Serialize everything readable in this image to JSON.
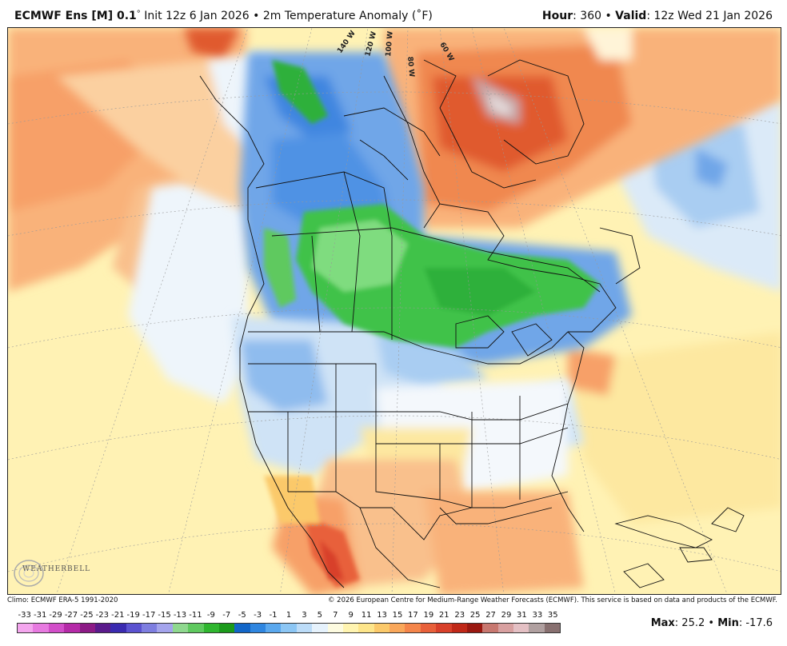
{
  "header": {
    "model": "ECMWF Ens [M] 0.1",
    "degree": "°",
    "init": " Init 12z 6 Jan 2026 • 2m Temperature Anomaly (˚F)",
    "hour_label": "Hour",
    "hour_value": ": 360 • ",
    "valid_label": "Valid",
    "valid_value": ": 12z Wed 21 Jan 2026"
  },
  "map": {
    "longitude_labels": [
      "140 W",
      "120 W",
      "100 W",
      "80 W",
      "60 W"
    ],
    "logo_text": "WEATHERBELL"
  },
  "footer": {
    "climo": "Climo: ECMWF ERA-5 1991-2020",
    "copyright": "© 2026 European Centre for Medium-Range Weather Forecasts (ECMWF). This service is based on data and products of the ECMWF."
  },
  "legend": {
    "labels": [
      "-33",
      "-31",
      "-29",
      "-27",
      "-25",
      "-23",
      "-21",
      "-19",
      "-17",
      "-15",
      "-13",
      "-11",
      "-9",
      "-7",
      "-5",
      "-3",
      "-1",
      "1",
      "3",
      "5",
      "7",
      "9",
      "11",
      "13",
      "15",
      "17",
      "19",
      "21",
      "23",
      "25",
      "27",
      "29",
      "31",
      "33",
      "35"
    ],
    "colors": [
      "#f4a6ee",
      "#e77ae0",
      "#d24ec9",
      "#b52aa8",
      "#8c1a86",
      "#5a1a8c",
      "#3a2ab0",
      "#5b52d0",
      "#7e7ee0",
      "#a4a4ec",
      "#8fd88f",
      "#5fc95f",
      "#2fb62f",
      "#1b9a1b",
      "#1266c8",
      "#2f86e0",
      "#5aa8ee",
      "#8cc6f4",
      "#bcdcf8",
      "#e6f2fc",
      "#fdfbe0",
      "#fff4b0",
      "#fde58a",
      "#fbc96a",
      "#f9a75a",
      "#f4854a",
      "#e8603a",
      "#d8402a",
      "#c02818",
      "#9a1810",
      "#c87870",
      "#d8a0a0",
      "#e4c0c4",
      "#b0a0a0",
      "#887070"
    ]
  },
  "stats": {
    "max_label": "Max",
    "max_value": ": 25.2 • ",
    "min_label": "Min",
    "min_value": ": -17.6"
  }
}
